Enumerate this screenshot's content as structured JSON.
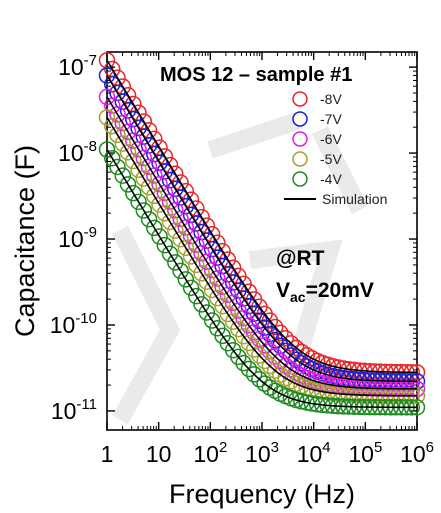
{
  "chart_data": {
    "type": "scatter",
    "title": "MOS 12 – sample #1",
    "xlabel": "Frequency (Hz)",
    "ylabel": "Capacitance (F)",
    "xscale": "log",
    "yscale": "log",
    "xlim": [
      1,
      1000000
    ],
    "ylim": [
      6e-12,
      1.5e-07
    ],
    "x_ticks": [
      {
        "value": 1,
        "base": "1",
        "exp": ""
      },
      {
        "value": 10,
        "base": "10",
        "exp": ""
      },
      {
        "value": 100,
        "base": "10",
        "exp": "2"
      },
      {
        "value": 1000,
        "base": "10",
        "exp": "3"
      },
      {
        "value": 10000,
        "base": "10",
        "exp": "4"
      },
      {
        "value": 100000,
        "base": "10",
        "exp": "5"
      },
      {
        "value": 1000000,
        "base": "10",
        "exp": "6"
      }
    ],
    "y_ticks": [
      {
        "value": 1e-11,
        "base": "10",
        "exp": "-11"
      },
      {
        "value": 1e-10,
        "base": "10",
        "exp": "-10"
      },
      {
        "value": 1e-09,
        "base": "10",
        "exp": "-9"
      },
      {
        "value": 1e-08,
        "base": "10",
        "exp": "-8"
      },
      {
        "value": 1e-07,
        "base": "10",
        "exp": "-7"
      }
    ],
    "legend_position": "top-right",
    "series": [
      {
        "name": "-8V",
        "color": "#e8262a",
        "marker": "open-circle",
        "c_at_1hz": 1.2e-07,
        "slope": -1.0,
        "plateau": 2.8e-11
      },
      {
        "name": "-7V",
        "color": "#1b1fd6",
        "marker": "open-circle",
        "c_at_1hz": 8e-08,
        "slope": -1.0,
        "plateau": 2.2e-11
      },
      {
        "name": "-6V",
        "color": "#e51be5",
        "marker": "open-circle",
        "c_at_1hz": 4.5e-08,
        "slope": -1.0,
        "plateau": 1.8e-11
      },
      {
        "name": "-5V",
        "color": "#a4a032",
        "marker": "open-circle",
        "c_at_1hz": 2.6e-08,
        "slope": -1.0,
        "plateau": 1.5e-11
      },
      {
        "name": "-4V",
        "color": "#1e8a22",
        "marker": "open-circle",
        "c_at_1hz": 1.1e-08,
        "slope": -1.0,
        "plateau": 1.1e-11
      }
    ],
    "simulation": {
      "name": "Simulation",
      "color": "#000000",
      "style": "solid line"
    },
    "annotations": {
      "line1": "@RT",
      "line2_main": "V",
      "line2_sub": "ac",
      "line2_rest": "=20mV"
    }
  }
}
